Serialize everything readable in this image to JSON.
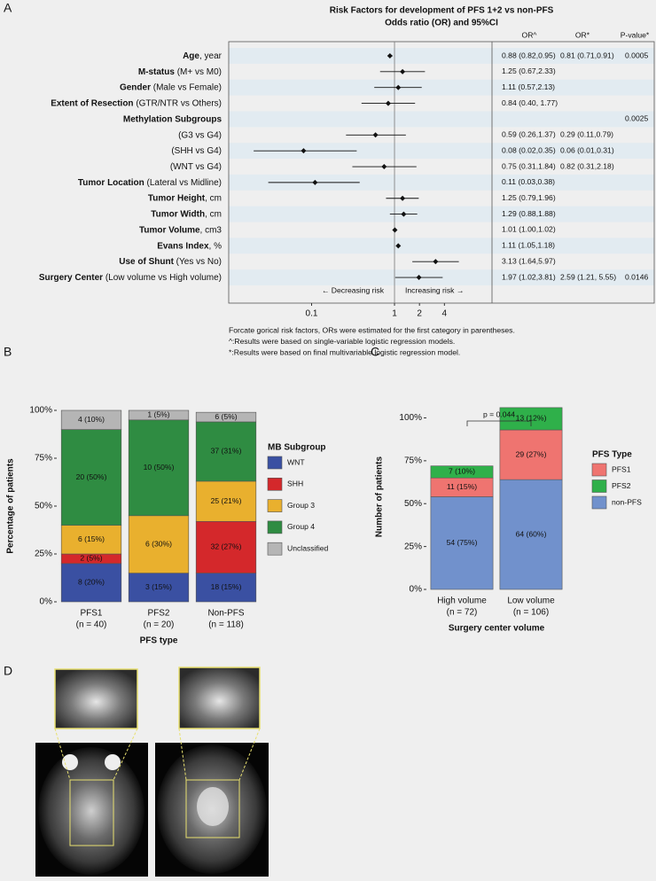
{
  "panel_labels": [
    "A",
    "B",
    "C",
    "D"
  ],
  "chart_data": [
    {
      "type": "forest",
      "title": "Risk Factors for development of PFS 1+2 vs non-PFS",
      "subtitle": "Odds ratio (OR) and 95%CI",
      "columns": [
        "OR^",
        "OR*",
        "P-value*"
      ],
      "xscale": "log",
      "xlim": [
        0.01,
        15
      ],
      "xticks": [
        0.1,
        1,
        2,
        4
      ],
      "reference": 1,
      "annotations": [
        "← Decreasing risk",
        "Increasing risk →"
      ],
      "point_color": "#111111",
      "stripe_color": "#e2ebf1",
      "rows": [
        {
          "bold": "Age",
          "text": ", year",
          "estimate": 0.88,
          "lo": 0.82,
          "hi": 0.95,
          "or_uni": "0.88 (0.82,0.95)",
          "or_multi": "0.81 (0.71,0.91)",
          "p": "0.0005"
        },
        {
          "bold": "M-status",
          "text": " (M+ vs M0)",
          "estimate": 1.25,
          "lo": 0.67,
          "hi": 2.33,
          "or_uni": "1.25 (0.67,2.33)"
        },
        {
          "bold": "Gender",
          "text": " (Male vs Female)",
          "estimate": 1.11,
          "lo": 0.57,
          "hi": 2.13,
          "or_uni": "1.11 (0.57,2.13)"
        },
        {
          "bold": "Extent of Resection",
          "text": " (GTR/NTR vs Others)",
          "estimate": 0.84,
          "lo": 0.4,
          "hi": 1.77,
          "or_uni": "0.84 (0.40, 1.77)"
        },
        {
          "bold": "Methylation Subgroups",
          "p": "0.0025"
        },
        {
          "text": "(G3 vs G4)",
          "estimate": 0.59,
          "lo": 0.26,
          "hi": 1.37,
          "or_uni": "0.59 (0.26,1.37)",
          "or_multi": "0.29 (0.11,0.79)"
        },
        {
          "text": "(SHH vs G4)",
          "estimate": 0.08,
          "lo": 0.02,
          "hi": 0.35,
          "or_uni": "0.08 (0.02,0.35)",
          "or_multi": "0.06 (0.01,0.31)"
        },
        {
          "text": "(WNT vs G4)",
          "estimate": 0.75,
          "lo": 0.31,
          "hi": 1.84,
          "or_uni": "0.75 (0.31,1.84)",
          "or_multi": "0.82 (0.31,2.18)"
        },
        {
          "bold": "Tumor Location",
          "text": " (Lateral vs Midline)",
          "estimate": 0.11,
          "lo": 0.03,
          "hi": 0.38,
          "or_uni": "0.11 (0.03,0.38)"
        },
        {
          "bold": "Tumor Height",
          "text": ", cm",
          "estimate": 1.25,
          "lo": 0.79,
          "hi": 1.96,
          "or_uni": "1.25 (0.79,1.96)"
        },
        {
          "bold": "Tumor Width",
          "text": ", cm",
          "estimate": 1.29,
          "lo": 0.88,
          "hi": 1.88,
          "or_uni": "1.29 (0.88,1.88)"
        },
        {
          "bold": "Tumor Volume",
          "text": ", cm3",
          "estimate": 1.01,
          "lo": 1.0,
          "hi": 1.02,
          "or_uni": "1.01 (1.00,1.02)"
        },
        {
          "bold": "Evans Index",
          "text": ", %",
          "estimate": 1.11,
          "lo": 1.05,
          "hi": 1.18,
          "or_uni": "1.11 (1.05,1.18)"
        },
        {
          "bold": "Use of Shunt",
          "text": " (Yes vs No)",
          "estimate": 3.13,
          "lo": 1.64,
          "hi": 5.97,
          "or_uni": "3.13 (1.64,5.97)"
        },
        {
          "bold": "Surgery Center",
          "text": " (Low volume vs High volume)",
          "estimate": 1.97,
          "lo": 1.02,
          "hi": 3.81,
          "or_uni": "1.97 (1.02,3.81)",
          "or_multi": "2.59 (1.21, 5.55)",
          "p": "0.0146"
        }
      ],
      "notes": [
        "Forcate gorical risk factors, ORs were estimated for the first category in parentheses.",
        "^:Results were based on single-variable logistic regression models.",
        "*:Results were based on final multivariable logistic regression model."
      ]
    },
    {
      "type": "stacked_bar",
      "y_label": "Percentage of patients",
      "x_label": "PFS type",
      "categories": [
        "PFS1",
        "PFS2",
        "Non-PFS"
      ],
      "category_counts": [
        "(n = 40)",
        "(n = 20)",
        "(n = 118)"
      ],
      "ylim": [
        0,
        100
      ],
      "yticks": [
        {
          "value": 0,
          "label": "0%"
        },
        {
          "value": 25,
          "label": "25%"
        },
        {
          "value": 50,
          "label": "50%"
        },
        {
          "value": 75,
          "label": "75%"
        },
        {
          "value": 100,
          "label": "100%"
        }
      ],
      "legend_title": "MB Subgroup",
      "series": [
        {
          "name": "WNT",
          "color": "#3a50a2",
          "values": [
            20,
            15,
            15
          ],
          "value_labels": [
            "8 (20%)",
            "3 (15%)",
            "18 (15%)"
          ]
        },
        {
          "name": "SHH",
          "color": "#d4282b",
          "values": [
            5,
            0,
            27
          ],
          "value_labels": [
            "2 (5%)",
            null,
            "32 (27%)"
          ]
        },
        {
          "name": "Group 3",
          "color": "#e9b02e",
          "values": [
            15,
            30,
            21
          ],
          "value_labels": [
            "6 (15%)",
            "6 (30%)",
            "25 (21%)"
          ]
        },
        {
          "name": "Group 4",
          "color": "#2f8c42",
          "values": [
            50,
            50,
            31
          ],
          "value_labels": [
            "20 (50%)",
            "10 (50%)",
            "37 (31%)"
          ]
        },
        {
          "name": "Unclassified",
          "color": "#b5b5b5",
          "values": [
            10,
            5,
            5
          ],
          "value_labels": [
            "4 (10%)",
            "1 (5%)",
            "6 (5%)"
          ]
        }
      ]
    },
    {
      "type": "stacked_bar",
      "y_label": "Number of patients",
      "x_label": "Surgery center volume",
      "categories": [
        "High volume",
        "Low volume"
      ],
      "category_counts": [
        "(n = 72)",
        "(n = 106)"
      ],
      "ylim": [
        0,
        108
      ],
      "yticks": [
        {
          "value": 0,
          "label": "0%"
        },
        {
          "value": 25,
          "label": "25%"
        },
        {
          "value": 50,
          "label": "50%"
        },
        {
          "value": 75,
          "label": "75%"
        },
        {
          "value": 100,
          "label": "100%"
        }
      ],
      "annotation": "p = 0.044",
      "legend_title": "PFS Type",
      "legend_order": [
        1,
        2,
        0
      ],
      "series": [
        {
          "name": "non-PFS",
          "color": "#7191cc",
          "values": [
            54,
            64
          ],
          "value_labels": [
            "54 (75%)",
            "64 (60%)"
          ]
        },
        {
          "name": "PFS1",
          "color": "#ef7470",
          "values": [
            11,
            29
          ],
          "value_labels": [
            "11 (15%)",
            "29 (27%)"
          ]
        },
        {
          "name": "PFS2",
          "color": "#2fb04a",
          "values": [
            7,
            13
          ],
          "value_labels": [
            "7 (10%)",
            "13 (12%)"
          ]
        }
      ]
    }
  ]
}
